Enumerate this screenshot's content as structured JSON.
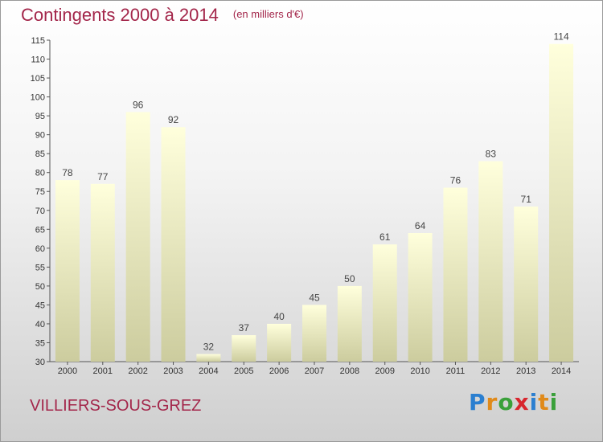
{
  "header": {
    "title": "Contingents 2000 à 2014",
    "subtitle": "(en milliers d'€)"
  },
  "footer": {
    "commune": "VILLIERS-SOUS-GREZ",
    "logo_letters": [
      "P",
      "r",
      "o",
      "x",
      "i",
      "t",
      "i"
    ]
  },
  "colors": {
    "bar_top": "#ffffdc",
    "bar_bottom": "#cccc9e",
    "title": "#a3264a"
  },
  "chart_data": {
    "type": "bar",
    "title": "Contingents 2000 à 2014",
    "subtitle": "(en milliers d'€)",
    "categories": [
      "2000",
      "2001",
      "2002",
      "2003",
      "2004",
      "2005",
      "2006",
      "2007",
      "2008",
      "2009",
      "2010",
      "2011",
      "2012",
      "2013",
      "2014"
    ],
    "values": [
      78,
      77,
      96,
      92,
      32,
      37,
      40,
      45,
      50,
      61,
      64,
      76,
      83,
      71,
      114
    ],
    "ylim": [
      30,
      115
    ],
    "yticks": [
      30,
      35,
      40,
      45,
      50,
      55,
      60,
      65,
      70,
      75,
      80,
      85,
      90,
      95,
      100,
      105,
      110,
      115
    ],
    "grid": false,
    "legend": "none"
  }
}
